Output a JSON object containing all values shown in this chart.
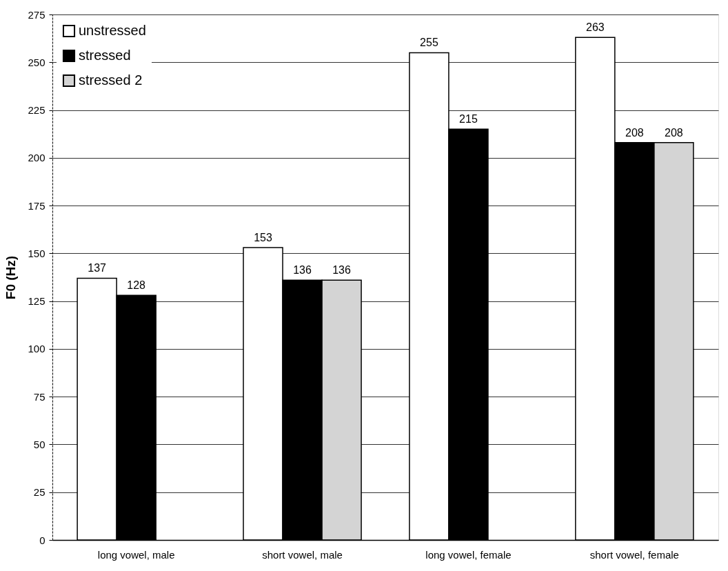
{
  "chart_data": {
    "type": "bar",
    "ylabel": "F0 (Hz)",
    "categories": [
      "long vowel, male",
      "short vowel, male",
      "long vowel, female",
      "short vowel, female"
    ],
    "series": [
      {
        "name": "unstressed",
        "color": "#ffffff",
        "values": [
          137,
          153,
          255,
          263
        ]
      },
      {
        "name": "stressed",
        "color": "#000000",
        "values": [
          128,
          136,
          215,
          208
        ]
      },
      {
        "name": "stressed 2",
        "color": "#d4d4d4",
        "values": [
          null,
          136,
          null,
          208
        ]
      }
    ],
    "ylim": [
      0,
      275
    ],
    "yticks": [
      0,
      25,
      50,
      75,
      100,
      125,
      150,
      175,
      200,
      225,
      250,
      275
    ],
    "grid": "y",
    "legend": "top left",
    "data_labels": true
  }
}
